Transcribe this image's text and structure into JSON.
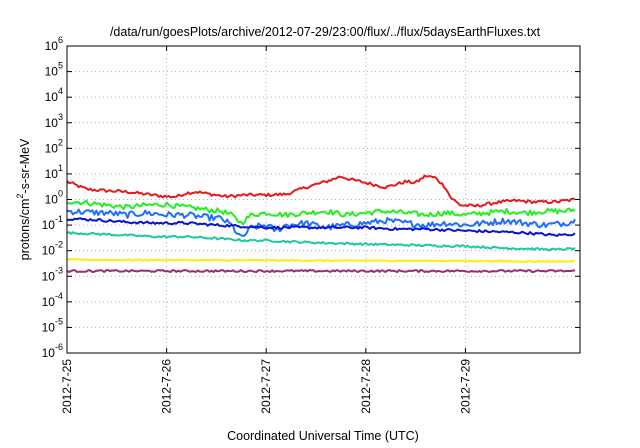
{
  "chart_data": {
    "type": "line",
    "title": "/data/run/goesPlots/archive/2012-07-29/23:00/flux/../flux/5daysEarthFluxes.txt",
    "xlabel": "Coordinated Universal Time (UTC)",
    "ylabel": "protons/cm²-s-sr-MeV",
    "ylabel_parts": {
      "base": "protons/cm",
      "sup": "2",
      "rest": "-s-sr-MeV"
    },
    "y_scale": "log",
    "ylim": [
      1e-06,
      1000000.0
    ],
    "xlim": [
      0,
      5.15
    ],
    "grid": true,
    "x_ticks": [
      {
        "value": 0,
        "label": "2012-7-25"
      },
      {
        "value": 1,
        "label": "2012-7-26"
      },
      {
        "value": 2,
        "label": "2012-7-27"
      },
      {
        "value": 3,
        "label": "2012-7-28"
      },
      {
        "value": 4,
        "label": "2012-7-29"
      }
    ],
    "y_ticks": [
      {
        "exp": "-6"
      },
      {
        "exp": "-5"
      },
      {
        "exp": "-4"
      },
      {
        "exp": "-3"
      },
      {
        "exp": "-2"
      },
      {
        "exp": "-1"
      },
      {
        "exp": "0"
      },
      {
        "exp": "1"
      },
      {
        "exp": "2"
      },
      {
        "exp": "3"
      },
      {
        "exp": "4"
      },
      {
        "exp": "5"
      },
      {
        "exp": "6"
      }
    ],
    "series": [
      {
        "color": "#e41a1c",
        "points": [
          [
            0,
            5
          ],
          [
            0.1,
            3.5
          ],
          [
            0.2,
            2.5
          ],
          [
            0.4,
            2.2
          ],
          [
            0.6,
            2.0
          ],
          [
            0.8,
            1.6
          ],
          [
            1.0,
            1.3
          ],
          [
            1.1,
            1.3
          ],
          [
            1.2,
            1.8
          ],
          [
            1.3,
            2.0
          ],
          [
            1.4,
            1.7
          ],
          [
            1.6,
            1.3
          ],
          [
            1.8,
            1.5
          ],
          [
            2.0,
            1.5
          ],
          [
            2.2,
            1.6
          ],
          [
            2.4,
            3.0
          ],
          [
            2.6,
            5.0
          ],
          [
            2.75,
            8.0
          ],
          [
            2.85,
            6.0
          ],
          [
            3.0,
            4.5
          ],
          [
            3.2,
            3.0
          ],
          [
            3.4,
            5.0
          ],
          [
            3.5,
            4.5
          ],
          [
            3.6,
            8.5
          ],
          [
            3.7,
            7.0
          ],
          [
            3.8,
            3.0
          ],
          [
            3.85,
            1.2
          ],
          [
            3.95,
            0.6
          ],
          [
            4.1,
            0.55
          ],
          [
            4.3,
            0.75
          ],
          [
            4.5,
            0.9
          ],
          [
            4.7,
            0.8
          ],
          [
            4.9,
            0.8
          ],
          [
            5.1,
            1.0
          ]
        ]
      },
      {
        "color": "#22ee22",
        "points": [
          [
            0,
            0.85
          ],
          [
            0.2,
            0.75
          ],
          [
            0.4,
            0.6
          ],
          [
            0.6,
            0.5
          ],
          [
            0.8,
            0.6
          ],
          [
            1.0,
            0.65
          ],
          [
            1.1,
            0.55
          ],
          [
            1.2,
            0.5
          ],
          [
            1.4,
            0.4
          ],
          [
            1.55,
            0.35
          ],
          [
            1.65,
            0.25
          ],
          [
            1.75,
            0.12
          ],
          [
            1.85,
            0.25
          ],
          [
            2.0,
            0.3
          ],
          [
            2.2,
            0.25
          ],
          [
            2.4,
            0.3
          ],
          [
            2.6,
            0.35
          ],
          [
            2.8,
            0.25
          ],
          [
            3.0,
            0.3
          ],
          [
            3.2,
            0.35
          ],
          [
            3.4,
            0.3
          ],
          [
            3.6,
            0.25
          ],
          [
            3.8,
            0.3
          ],
          [
            4.0,
            0.25
          ],
          [
            4.2,
            0.3
          ],
          [
            4.4,
            0.35
          ],
          [
            4.6,
            0.3
          ],
          [
            4.8,
            0.35
          ],
          [
            5.0,
            0.35
          ],
          [
            5.1,
            0.4
          ]
        ]
      },
      {
        "color": "#1f6fff",
        "points": [
          [
            0,
            0.35
          ],
          [
            0.2,
            0.32
          ],
          [
            0.4,
            0.3
          ],
          [
            0.6,
            0.25
          ],
          [
            0.8,
            0.3
          ],
          [
            1.0,
            0.25
          ],
          [
            1.2,
            0.25
          ],
          [
            1.4,
            0.2
          ],
          [
            1.55,
            0.18
          ],
          [
            1.65,
            0.1
          ],
          [
            1.75,
            0.03
          ],
          [
            1.85,
            0.08
          ],
          [
            2.0,
            0.1
          ],
          [
            2.1,
            0.06
          ],
          [
            2.2,
            0.1
          ],
          [
            2.4,
            0.12
          ],
          [
            2.6,
            0.08
          ],
          [
            2.8,
            0.1
          ],
          [
            3.0,
            0.12
          ],
          [
            3.2,
            0.15
          ],
          [
            3.4,
            0.12
          ],
          [
            3.6,
            0.1
          ],
          [
            3.8,
            0.12
          ],
          [
            4.0,
            0.1
          ],
          [
            4.2,
            0.12
          ],
          [
            4.4,
            0.15
          ],
          [
            4.6,
            0.12
          ],
          [
            4.8,
            0.1
          ],
          [
            5.0,
            0.12
          ],
          [
            5.1,
            0.15
          ]
        ]
      },
      {
        "color": "#0a14cc",
        "points": [
          [
            0,
            0.18
          ],
          [
            0.3,
            0.16
          ],
          [
            0.6,
            0.13
          ],
          [
            0.9,
            0.12
          ],
          [
            1.2,
            0.12
          ],
          [
            1.5,
            0.1
          ],
          [
            1.75,
            0.09
          ],
          [
            2.0,
            0.08
          ],
          [
            2.3,
            0.08
          ],
          [
            2.6,
            0.08
          ],
          [
            3.0,
            0.08
          ],
          [
            3.3,
            0.07
          ],
          [
            3.6,
            0.07
          ],
          [
            4.0,
            0.06
          ],
          [
            4.3,
            0.055
          ],
          [
            4.6,
            0.05
          ],
          [
            4.9,
            0.04
          ],
          [
            5.1,
            0.045
          ]
        ]
      },
      {
        "color": "#1ec8a0",
        "points": [
          [
            0,
            0.05
          ],
          [
            0.3,
            0.045
          ],
          [
            0.6,
            0.04
          ],
          [
            0.9,
            0.035
          ],
          [
            1.2,
            0.035
          ],
          [
            1.5,
            0.03
          ],
          [
            1.8,
            0.025
          ],
          [
            2.0,
            0.025
          ],
          [
            2.3,
            0.022
          ],
          [
            2.6,
            0.02
          ],
          [
            3.0,
            0.018
          ],
          [
            3.3,
            0.017
          ],
          [
            3.6,
            0.016
          ],
          [
            4.0,
            0.015
          ],
          [
            4.3,
            0.013
          ],
          [
            4.6,
            0.012
          ],
          [
            4.9,
            0.011
          ],
          [
            5.1,
            0.012
          ]
        ]
      },
      {
        "color": "#ffee00",
        "points": [
          [
            0,
            0.0045
          ],
          [
            0.5,
            0.0043
          ],
          [
            1.0,
            0.0043
          ],
          [
            1.5,
            0.0042
          ],
          [
            2.0,
            0.0042
          ],
          [
            2.5,
            0.0041
          ],
          [
            3.0,
            0.0041
          ],
          [
            3.5,
            0.004
          ],
          [
            4.0,
            0.004
          ],
          [
            4.5,
            0.0038
          ],
          [
            5.1,
            0.0038
          ]
        ]
      },
      {
        "color": "#9b2a78",
        "points": [
          [
            0,
            0.0016
          ],
          [
            0.5,
            0.0016
          ],
          [
            1.0,
            0.0016
          ],
          [
            1.5,
            0.0016
          ],
          [
            2.0,
            0.0016
          ],
          [
            2.5,
            0.0016
          ],
          [
            3.0,
            0.0016
          ],
          [
            3.5,
            0.0016
          ],
          [
            4.0,
            0.0016
          ],
          [
            4.5,
            0.0016
          ],
          [
            5.1,
            0.0016
          ]
        ]
      }
    ]
  }
}
